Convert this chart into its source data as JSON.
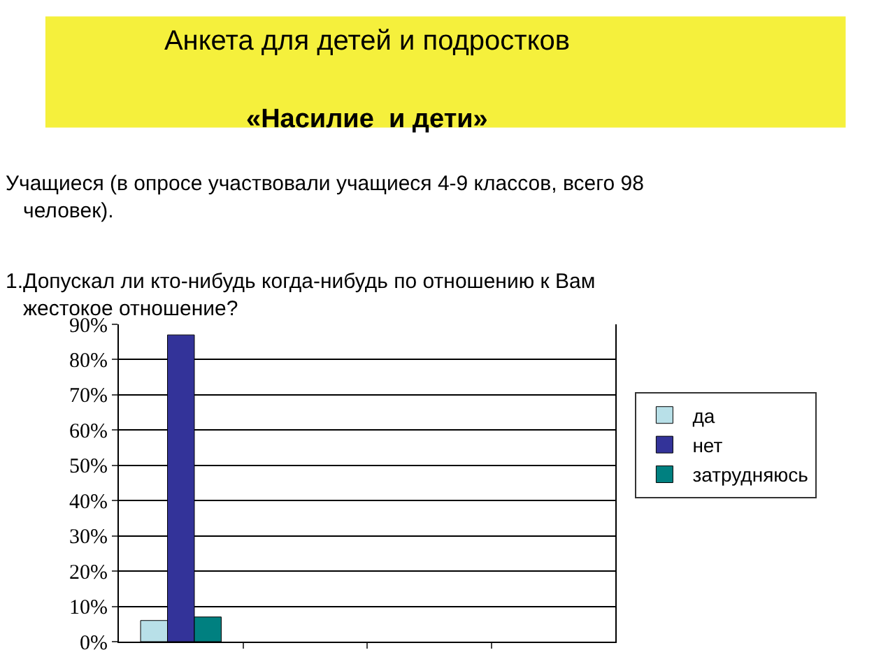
{
  "chart_data": {
    "type": "bar",
    "title": "Анкета для детей и подростков",
    "subtitle": "«Насилие  и дети»",
    "annotations": [
      "Учащиеся (в опросе участвовали учащиеся 4-9 классов, всего 98 человек).",
      "1.Допускал ли кто-нибудь когда-нибудь по отношению к Вам жестокое отношение?"
    ],
    "categories": [
      null,
      null,
      null,
      null
    ],
    "series": [
      {
        "name": "да",
        "color": "#b8e0e8",
        "values": [
          6,
          null,
          null,
          null
        ]
      },
      {
        "name": "нет",
        "color": "#333399",
        "values": [
          87,
          null,
          null,
          null
        ]
      },
      {
        "name": "затрудняюсь",
        "color": "#008080",
        "values": [
          7,
          null,
          null,
          null
        ]
      }
    ],
    "ylim": [
      0,
      90
    ],
    "yticks": [
      {
        "value": 0,
        "label": "0%"
      },
      {
        "value": 10,
        "label": "10%"
      },
      {
        "value": 20,
        "label": "20%"
      },
      {
        "value": 30,
        "label": "30%"
      },
      {
        "value": 40,
        "label": "40%"
      },
      {
        "value": 50,
        "label": "50%"
      },
      {
        "value": 60,
        "label": "60%"
      },
      {
        "value": 70,
        "label": "70%"
      },
      {
        "value": 80,
        "label": "80%"
      },
      {
        "value": 90,
        "label": "90%"
      }
    ],
    "grid": "y",
    "legend": "right"
  }
}
